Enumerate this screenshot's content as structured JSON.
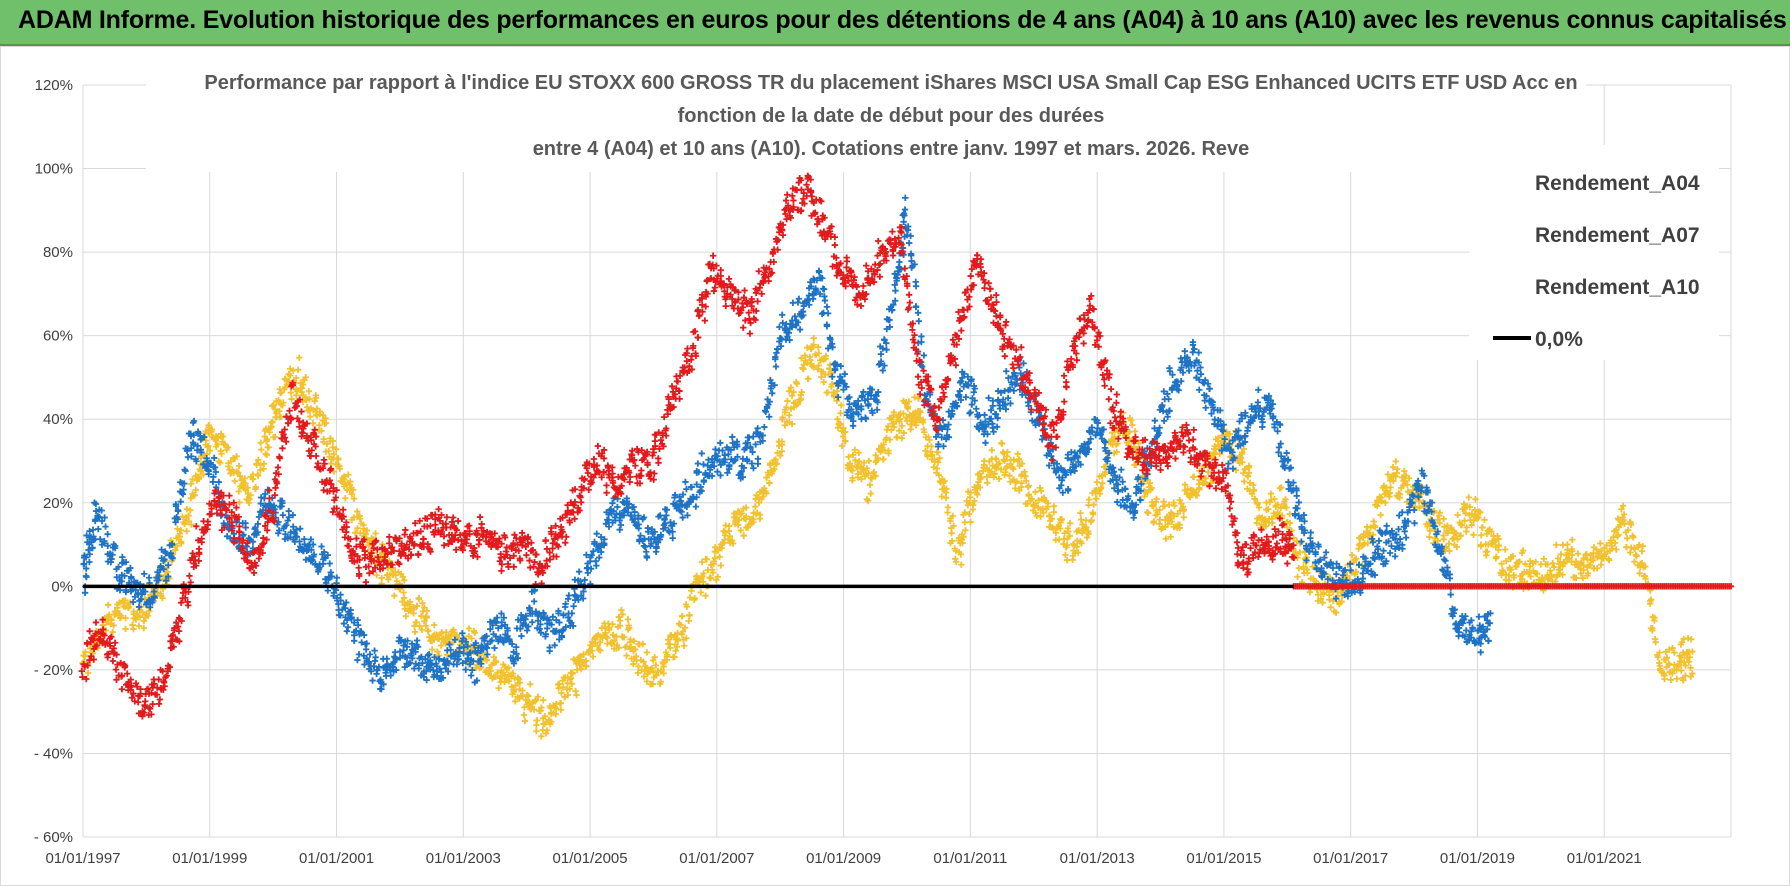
{
  "banner": {
    "title": "ADAM Informe. Evolution historique des performances en euros pour des détentions de 4 ans (A04) à 10 ans (A10) avec les revenus connus capitalisés"
  },
  "colors": {
    "banner_bg": "#6fbf6b",
    "a04": "#f2c12e",
    "a07": "#1f73c5",
    "a10": "#e31a1c",
    "zero_line": "#000000",
    "grid": "#d9d9d9"
  },
  "chart_data": {
    "type": "scatter",
    "title_lines": [
      "Performance par rapport à l'indice EU STOXX 600 GROSS TR  du placement iShares MSCI USA Small Cap ESG Enhanced UCITS ETF USD Acc  en",
      "fonction de la date de début pour des durées",
      "entre 4 (A04) et 10 ans (A10). Cotations entre janv. 1997 et mars. 2026. Reve"
    ],
    "xlabel": "",
    "ylabel": "",
    "xlim": [
      1997.0,
      2023.0
    ],
    "ylim": [
      -60,
      120
    ],
    "x_ticks": [
      1997,
      1999,
      2001,
      2003,
      2005,
      2007,
      2009,
      2011,
      2013,
      2015,
      2017,
      2019,
      2021
    ],
    "x_tick_labels": [
      "01/01/1997",
      "01/01/1999",
      "01/01/2001",
      "01/01/2003",
      "01/01/2005",
      "01/01/2007",
      "01/01/2009",
      "01/01/2011",
      "01/01/2013",
      "01/01/2015",
      "01/01/2017",
      "01/01/2019",
      "01/01/2021"
    ],
    "y_ticks": [
      -60,
      -40,
      -20,
      0,
      20,
      40,
      60,
      80,
      100,
      120
    ],
    "y_tick_labels": [
      "- 60%",
      "- 40%",
      "- 20%",
      "0%",
      "20%",
      "40%",
      "60%",
      "80%",
      "100%",
      "120%"
    ],
    "grid": true,
    "legend_position": "top-right",
    "series": [
      {
        "name": "Rendement_A04",
        "color_key": "a04",
        "x": [
          1997.0,
          1997.3,
          1997.6,
          1997.9,
          1998.2,
          1998.5,
          1998.8,
          1999.0,
          1999.3,
          1999.6,
          1999.9,
          2000.1,
          2000.4,
          2000.7,
          2001.0,
          2001.3,
          2001.6,
          2001.9,
          2002.2,
          2002.5,
          2002.8,
          2003.1,
          2003.4,
          2003.7,
          2004.0,
          2004.3,
          2004.6,
          2004.9,
          2005.2,
          2005.5,
          2005.8,
          2006.1,
          2006.4,
          2006.7,
          2007.0,
          2007.3,
          2007.6,
          2007.9,
          2008.2,
          2008.5,
          2008.8,
          2009.1,
          2009.4,
          2009.7,
          2010.0,
          2010.2,
          2010.5,
          2010.8,
          2011.1,
          2011.4,
          2011.7,
          2012.0,
          2012.3,
          2012.6,
          2012.9,
          2013.2,
          2013.5,
          2013.8,
          2014.1,
          2014.4,
          2014.7,
          2015.0,
          2015.3,
          2015.6,
          2015.9,
          2016.2,
          2016.5,
          2016.8,
          2017.1,
          2017.4,
          2017.7,
          2018.0,
          2018.3,
          2018.6,
          2018.9,
          2019.2,
          2019.5,
          2019.8,
          2020.1,
          2020.4,
          2020.7,
          2021.0,
          2021.3,
          2021.6,
          2021.9,
          2022.2,
          2022.4
        ],
        "values": [
          -20,
          -10,
          -5,
          -8,
          0,
          10,
          25,
          38,
          30,
          20,
          35,
          45,
          50,
          40,
          30,
          18,
          8,
          2,
          -5,
          -12,
          -15,
          -14,
          -18,
          -22,
          -28,
          -32,
          -25,
          -18,
          -12,
          -10,
          -18,
          -22,
          -12,
          0,
          5,
          15,
          18,
          28,
          45,
          55,
          50,
          30,
          25,
          35,
          42,
          40,
          28,
          8,
          25,
          30,
          28,
          20,
          15,
          10,
          18,
          35,
          38,
          22,
          15,
          20,
          25,
          38,
          30,
          15,
          20,
          5,
          0,
          -3,
          5,
          18,
          25,
          22,
          15,
          12,
          18,
          10,
          5,
          3,
          2,
          8,
          5,
          10,
          15,
          5,
          -20,
          -18,
          -16
        ]
      },
      {
        "name": "Rendement_A07",
        "color_key": "a07",
        "x": [
          1997.0,
          1997.2,
          1997.5,
          1997.8,
          1998.1,
          1998.4,
          1998.7,
          1999.0,
          1999.3,
          1999.6,
          1999.9,
          2000.2,
          2000.5,
          2000.8,
          2001.1,
          2001.4,
          2001.7,
          2002.0,
          2002.3,
          2002.6,
          2002.9,
          2003.2,
          2003.5,
          2003.8,
          2004.1,
          2004.4,
          2004.7,
          2005.0,
          2005.3,
          2005.6,
          2005.9,
          2006.2,
          2006.5,
          2006.8,
          2007.1,
          2007.4,
          2007.7,
          2008.0,
          2008.3,
          2008.6,
          2008.9,
          2009.2,
          2009.5,
          2009.8,
          2010.0,
          2010.3,
          2010.6,
          2010.9,
          2011.2,
          2011.5,
          2011.8,
          2012.1,
          2012.4,
          2012.7,
          2013.0,
          2013.3,
          2013.6,
          2013.9,
          2014.2,
          2014.5,
          2014.8,
          2015.1,
          2015.4,
          2015.7,
          2016.0,
          2016.3,
          2016.6,
          2016.9,
          2017.2,
          2017.5,
          2017.8,
          2018.1,
          2018.4,
          2018.7,
          2019.0,
          2019.2
        ],
        "values": [
          2,
          18,
          5,
          0,
          -2,
          10,
          35,
          30,
          15,
          10,
          20,
          15,
          10,
          5,
          -5,
          -15,
          -20,
          -15,
          -18,
          -20,
          -15,
          -18,
          -10,
          -15,
          -5,
          -12,
          -5,
          5,
          15,
          20,
          10,
          15,
          20,
          28,
          32,
          30,
          35,
          60,
          65,
          75,
          50,
          40,
          45,
          70,
          90,
          45,
          35,
          50,
          38,
          45,
          50,
          40,
          25,
          30,
          38,
          25,
          20,
          35,
          50,
          55,
          45,
          30,
          40,
          45,
          28,
          10,
          5,
          0,
          3,
          10,
          12,
          25,
          10,
          -10,
          -12,
          -10
        ]
      },
      {
        "name": "Rendement_A10",
        "color_key": "a10",
        "x": [
          1997.0,
          1997.3,
          1997.6,
          1997.9,
          1998.2,
          1998.5,
          1998.8,
          1999.1,
          1999.4,
          1999.7,
          2000.0,
          2000.3,
          2000.6,
          2000.9,
          2001.2,
          2001.5,
          2001.8,
          2002.1,
          2002.4,
          2002.7,
          2003.0,
          2003.3,
          2003.6,
          2003.9,
          2004.2,
          2004.5,
          2004.8,
          2005.1,
          2005.4,
          2005.7,
          2006.0,
          2006.3,
          2006.6,
          2006.9,
          2007.2,
          2007.5,
          2007.8,
          2008.1,
          2008.4,
          2008.7,
          2009.0,
          2009.3,
          2009.6,
          2009.9,
          2010.2,
          2010.5,
          2010.8,
          2011.1,
          2011.4,
          2011.7,
          2012.0,
          2012.3,
          2012.6,
          2012.9,
          2013.2,
          2013.5,
          2013.8,
          2014.1,
          2014.4,
          2014.7,
          2015.0,
          2015.3,
          2015.6,
          2015.9,
          2016.1
        ],
        "values": [
          -18,
          -10,
          -20,
          -28,
          -25,
          -10,
          10,
          20,
          15,
          5,
          20,
          45,
          35,
          25,
          10,
          5,
          8,
          10,
          12,
          15,
          10,
          12,
          8,
          10,
          5,
          12,
          20,
          30,
          25,
          28,
          30,
          45,
          55,
          75,
          70,
          65,
          75,
          90,
          95,
          85,
          75,
          70,
          80,
          85,
          50,
          40,
          60,
          78,
          65,
          55,
          45,
          35,
          55,
          68,
          45,
          35,
          30,
          32,
          35,
          30,
          25,
          5,
          10,
          12,
          8
        ]
      },
      {
        "name": "0,0%",
        "color_key": "zero_line",
        "x": [
          1997.0,
          2023.0
        ],
        "values": [
          0,
          0
        ]
      }
    ],
    "flat_zero_segment": {
      "name": "Rendement_A10",
      "x_start": 2016.1,
      "x_end": 2023.0,
      "value": 0
    }
  }
}
